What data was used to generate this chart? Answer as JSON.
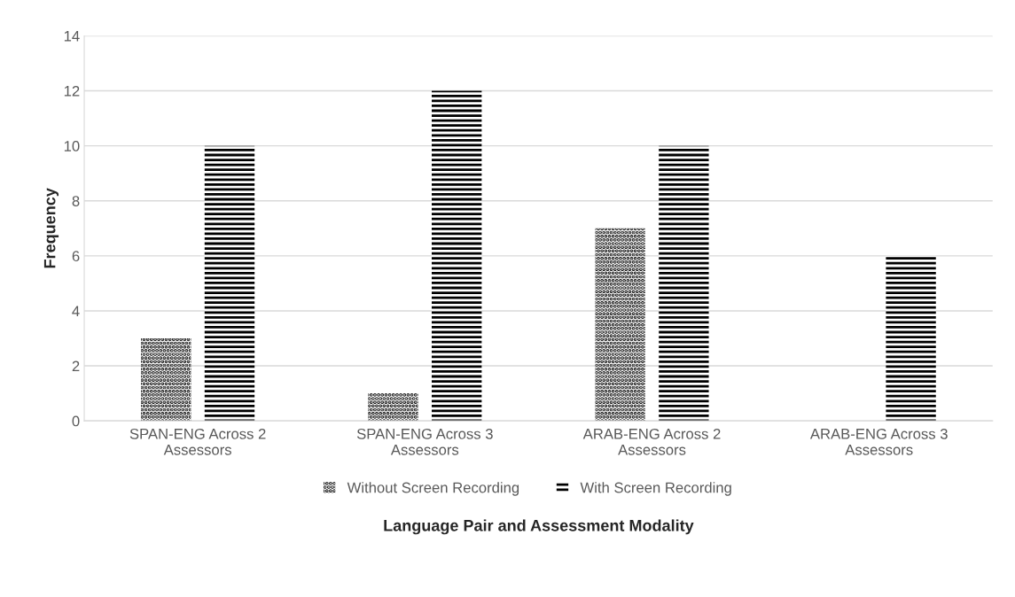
{
  "chart_data": {
    "type": "bar",
    "xlabel": "Language Pair and Assessment Modality",
    "ylabel": "Frequency",
    "categories": [
      "SPAN-ENG Across 2 Assessors",
      "SPAN-ENG Across 3 Assessors",
      "ARAB-ENG Across 2 Assessors",
      "ARAB-ENG Across 3 Assessors"
    ],
    "series": [
      {
        "name": "Without Screen Recording",
        "color": "#000000",
        "values": [
          3,
          1,
          7,
          0
        ]
      },
      {
        "name": "With Screen Recording",
        "color": "#000000",
        "values": [
          10,
          12,
          10,
          6
        ]
      }
    ],
    "ylim": [
      0,
      14
    ],
    "yticks": [
      0,
      2,
      4,
      6,
      8,
      10,
      12,
      14
    ],
    "grid": "y",
    "legend": "bottom"
  }
}
